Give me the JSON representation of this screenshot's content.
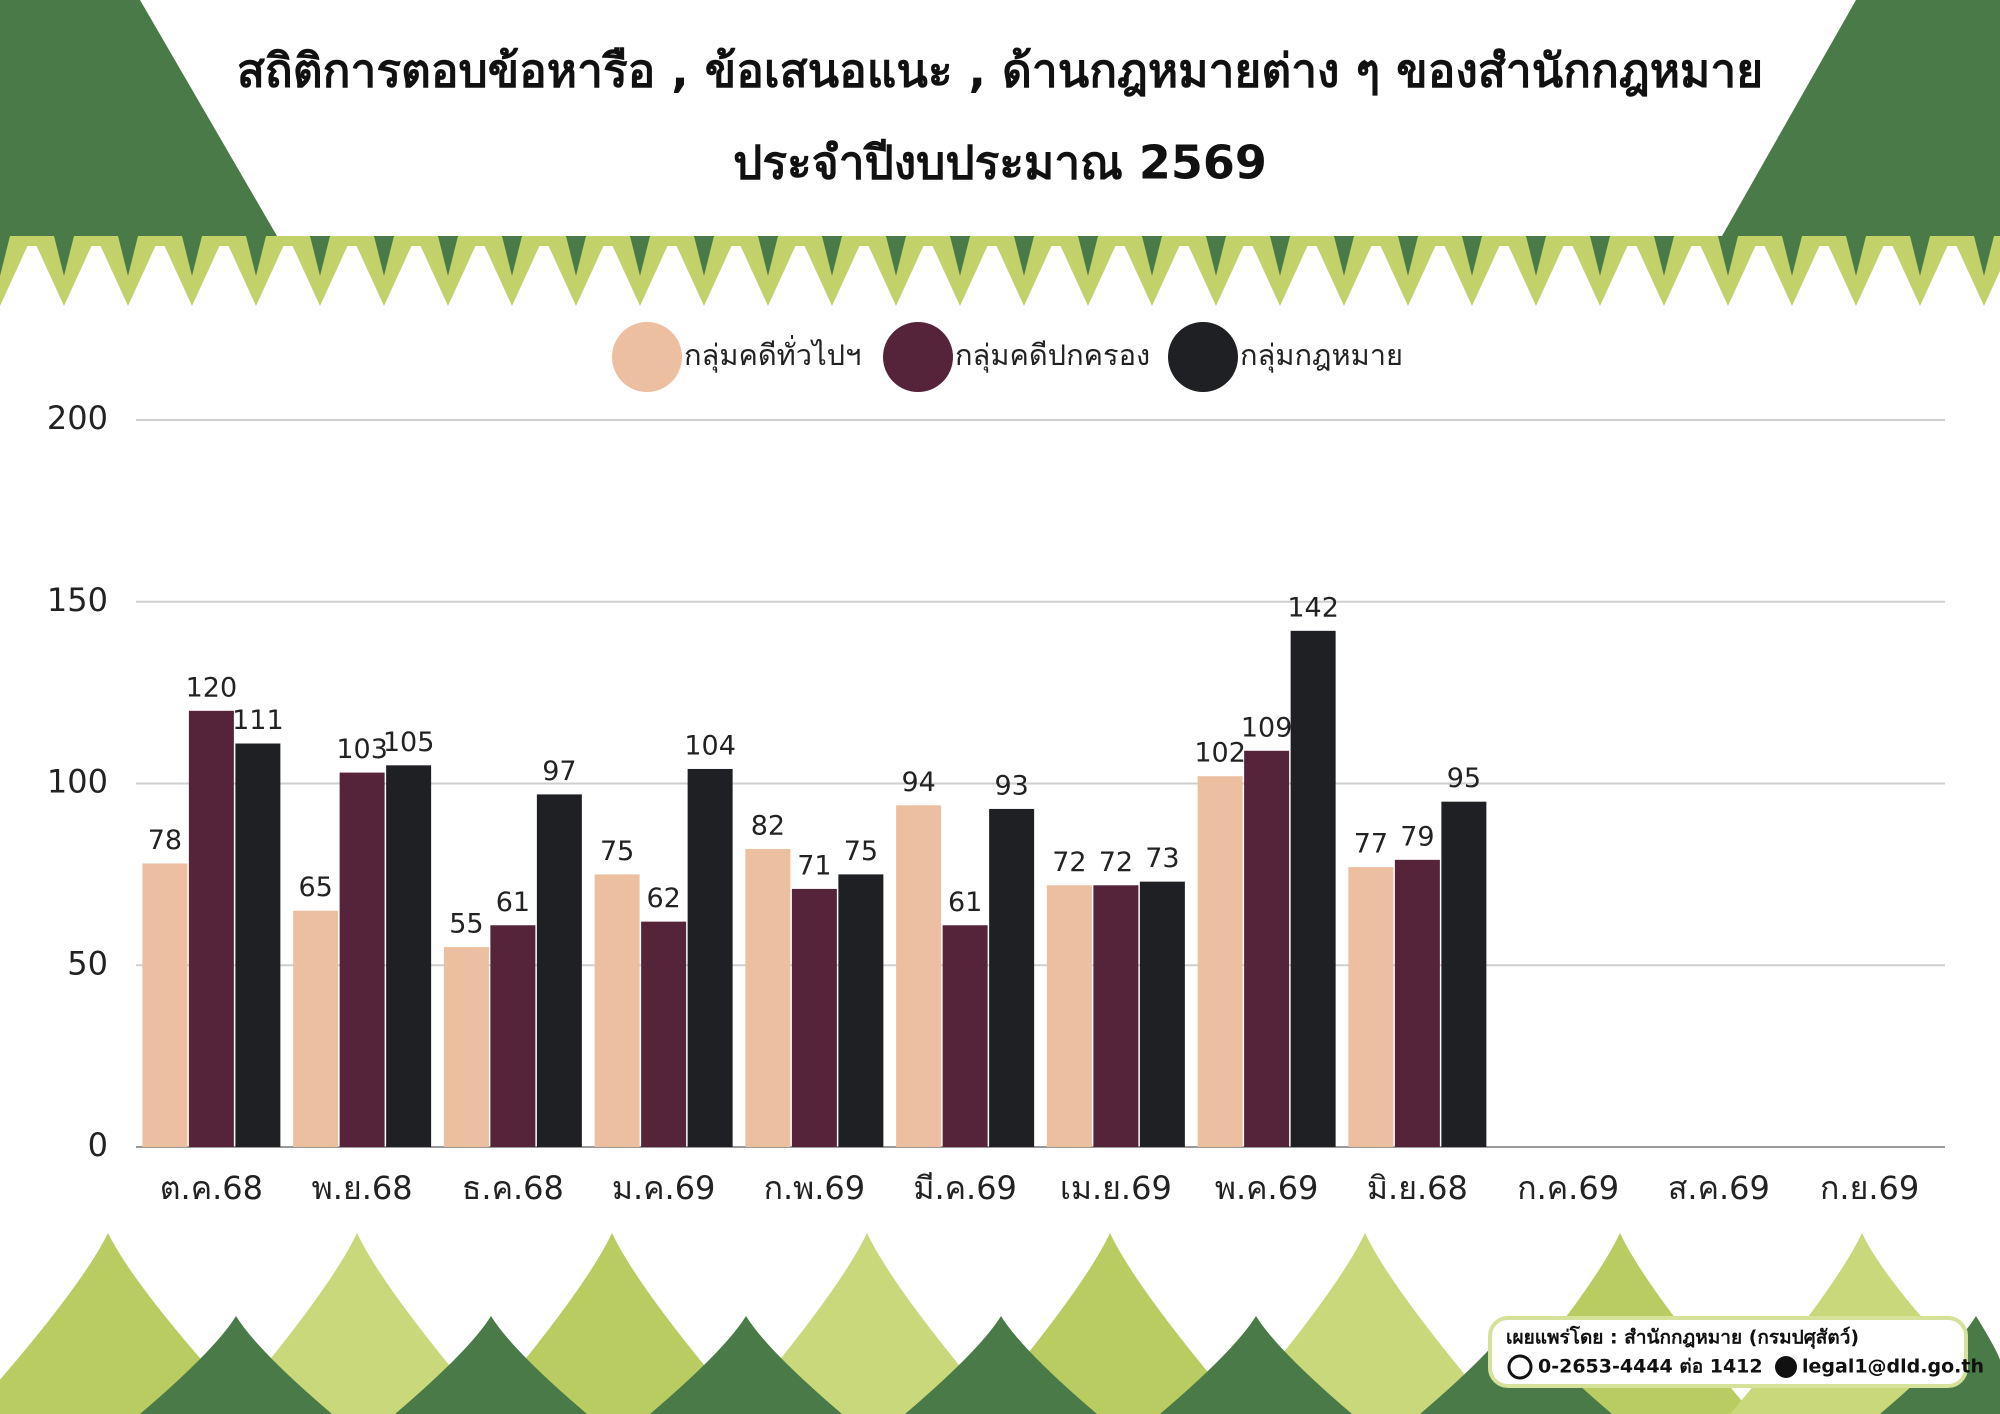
{
  "chart_data": {
    "type": "bar",
    "title": "สถิติการตอบข้อหารือ , ข้อเสนอแนะ , ด้านกฎหมายต่าง ๆ  ของสำนักกฎหมาย",
    "subtitle": "ประจำปีงบประมาณ 2569",
    "categories": [
      "ต.ค.68",
      "พ.ย.68",
      "ธ.ค.68",
      "ม.ค.69",
      "ก.พ.69",
      "มี.ค.69",
      "เม.ย.69",
      "พ.ค.69",
      "มิ.ย.68",
      "ก.ค.69",
      "ส.ค.69",
      "ก.ย.69"
    ],
    "series": [
      {
        "name": "กลุ่มคดีทั่วไปฯ",
        "color": "#ebbf9f",
        "values": [
          78,
          65,
          55,
          75,
          82,
          94,
          72,
          102,
          77,
          null,
          null,
          null
        ]
      },
      {
        "name": "กลุ่มคดีปกครอง",
        "color": "#55233a",
        "values": [
          120,
          103,
          61,
          62,
          71,
          61,
          72,
          109,
          79,
          null,
          null,
          null
        ]
      },
      {
        "name": "กลุ่มกฎหมาย",
        "color": "#1f2023",
        "values": [
          111,
          105,
          97,
          104,
          75,
          93,
          73,
          142,
          95,
          null,
          null,
          null
        ]
      }
    ],
    "ylim": [
      0,
      200
    ],
    "yticks": [
      0,
      50,
      100,
      150,
      200
    ],
    "grid": true,
    "legend": "top"
  },
  "footer": {
    "published_by": "เผยแพร่โดย : สำนักกฎหมาย (กรมปศุสัตว์)",
    "phone": "0-2653-4444 ต่อ 1412",
    "email": "legal1@dld.go.th"
  }
}
